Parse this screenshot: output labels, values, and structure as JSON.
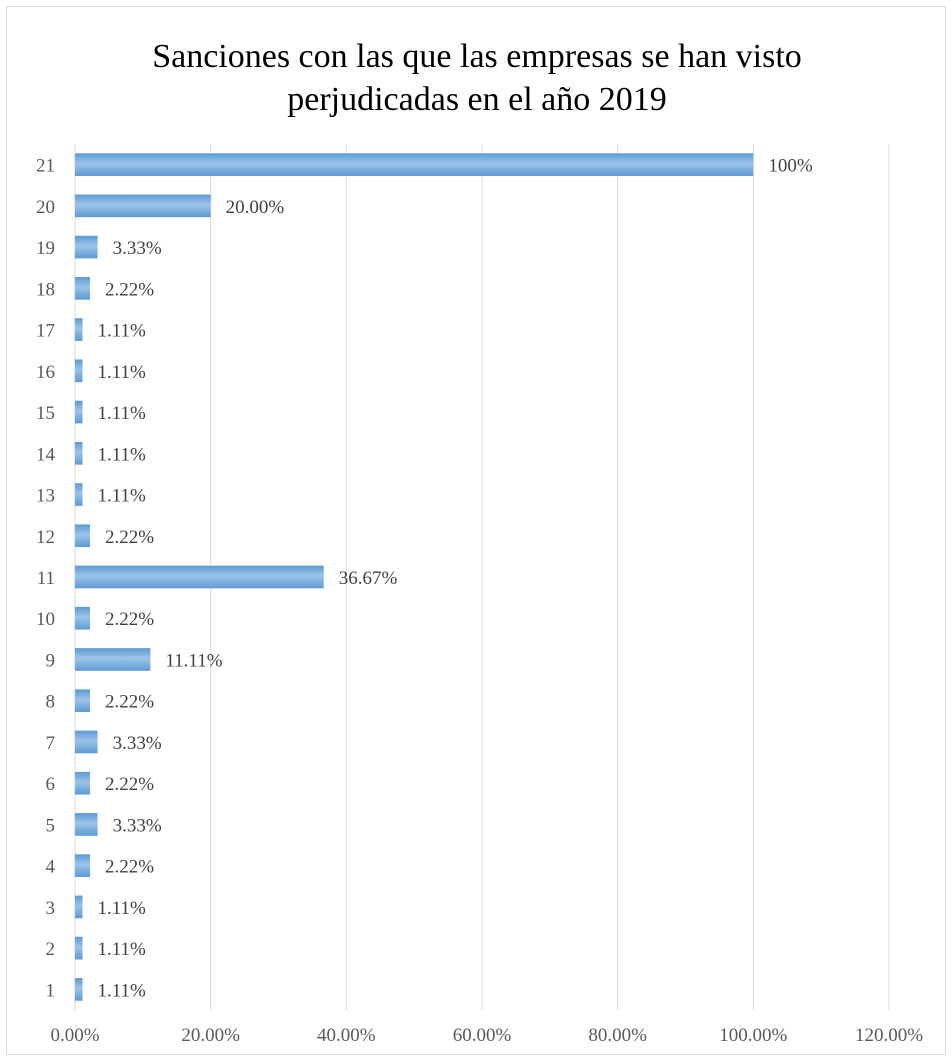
{
  "chart_data": {
    "type": "bar",
    "orientation": "horizontal",
    "title_lines": [
      "Sanciones con las que las empresas se han visto",
      "perjudicadas en el año 2019"
    ],
    "categories": [
      "1",
      "2",
      "3",
      "4",
      "5",
      "6",
      "7",
      "8",
      "9",
      "10",
      "11",
      "12",
      "13",
      "14",
      "15",
      "16",
      "17",
      "18",
      "19",
      "20",
      "21"
    ],
    "values": [
      1.11,
      1.11,
      1.11,
      2.22,
      3.33,
      2.22,
      3.33,
      2.22,
      11.11,
      2.22,
      36.67,
      2.22,
      1.11,
      1.11,
      1.11,
      1.11,
      1.11,
      2.22,
      3.33,
      20.0,
      100
    ],
    "value_labels": [
      "1.11%",
      "1.11%",
      "1.11%",
      "2.22%",
      "3.33%",
      "2.22%",
      "3.33%",
      "2.22%",
      "11.11%",
      "2.22%",
      "36.67%",
      "2.22%",
      "1.11%",
      "1.11%",
      "1.11%",
      "1.11%",
      "1.11%",
      "2.22%",
      "3.33%",
      "20.00%",
      "100%"
    ],
    "x_ticks": [
      0,
      20,
      40,
      60,
      80,
      100,
      120
    ],
    "x_tick_labels": [
      "0.00%",
      "20.00%",
      "40.00%",
      "60.00%",
      "80.00%",
      "100.00%",
      "120.00%"
    ],
    "xlim": [
      0,
      120
    ],
    "xlabel": "",
    "ylabel": "",
    "grid": "vertical",
    "legend": "none",
    "bar_color": "#5b9bd5",
    "bar_color_light": "#9dc3e6",
    "grid_color": "#d9d9d9"
  }
}
